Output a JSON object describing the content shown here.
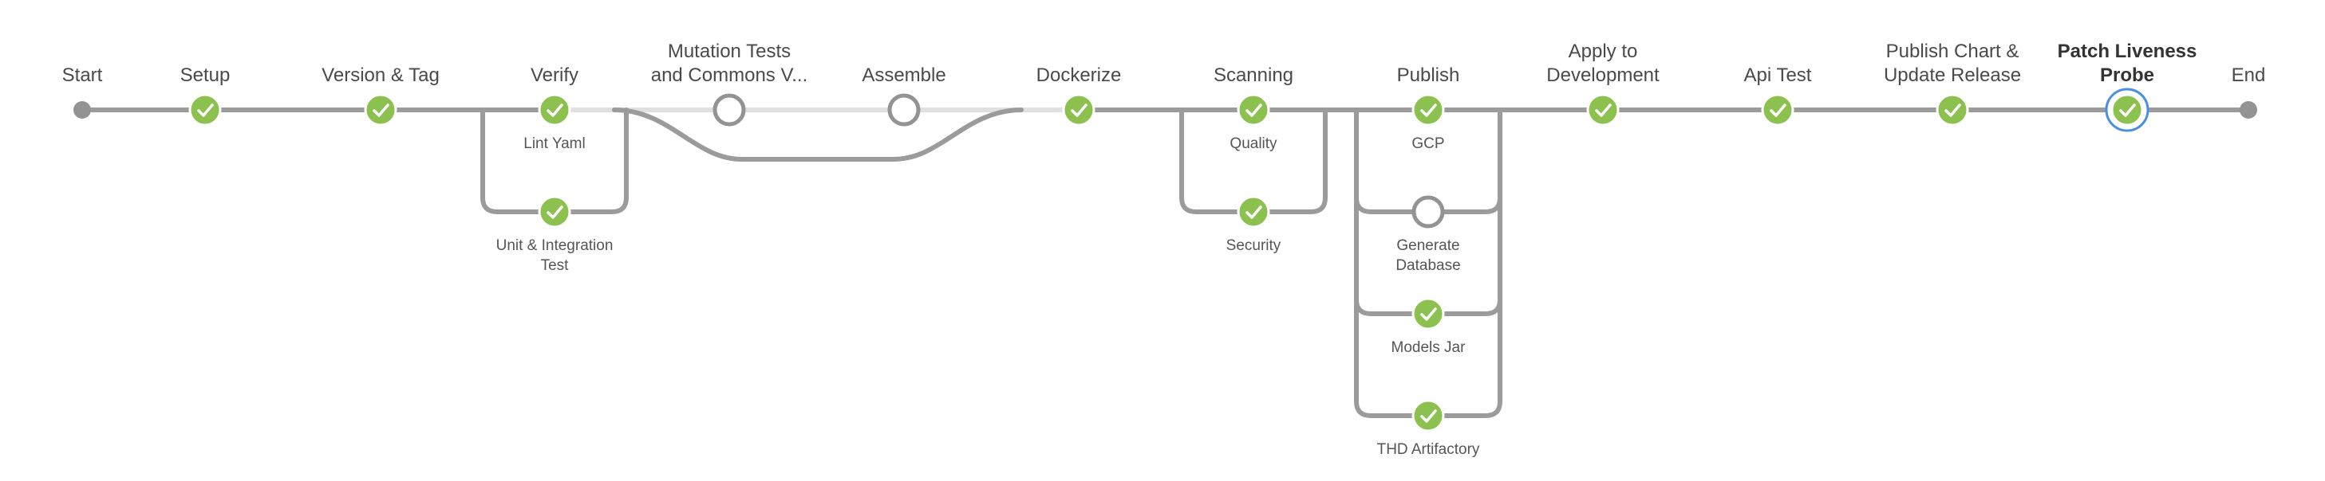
{
  "pipeline": {
    "start_label": "Start",
    "end_label": "End",
    "stages": [
      {
        "label_lines": [
          "Setup"
        ],
        "status": "success"
      },
      {
        "label_lines": [
          "Version & Tag"
        ],
        "status": "success"
      },
      {
        "label_lines": [
          "Verify"
        ],
        "status": "success",
        "branches": [
          {
            "label_lines": [
              "Lint Yaml"
            ],
            "status": "success"
          },
          {
            "label_lines": [
              "Unit & Integration",
              "Test"
            ],
            "status": "success"
          }
        ]
      },
      {
        "label_lines": [
          "Mutation Tests",
          "and Commons V..."
        ],
        "status": "not-built"
      },
      {
        "label_lines": [
          "Assemble"
        ],
        "status": "not-built"
      },
      {
        "label_lines": [
          "Dockerize"
        ],
        "status": "success"
      },
      {
        "label_lines": [
          "Scanning"
        ],
        "status": "success",
        "branches": [
          {
            "label_lines": [
              "Quality"
            ],
            "status": "success"
          },
          {
            "label_lines": [
              "Security"
            ],
            "status": "success"
          }
        ]
      },
      {
        "label_lines": [
          "Publish"
        ],
        "status": "success",
        "branches": [
          {
            "label_lines": [
              "GCP"
            ],
            "status": "success"
          },
          {
            "label_lines": [
              "Generate",
              "Database"
            ],
            "status": "not-built"
          },
          {
            "label_lines": [
              "Models Jar"
            ],
            "status": "success"
          },
          {
            "label_lines": [
              "THD Artifactory"
            ],
            "status": "success"
          }
        ]
      },
      {
        "label_lines": [
          "Apply to",
          "Development"
        ],
        "status": "success"
      },
      {
        "label_lines": [
          "Api Test"
        ],
        "status": "success"
      },
      {
        "label_lines": [
          "Publish Chart &",
          "Update Release"
        ],
        "status": "success"
      },
      {
        "label_lines": [
          "Patch Liveness",
          "Probe"
        ],
        "status": "success",
        "selected": true
      }
    ]
  },
  "colors": {
    "success": "#8cc04f",
    "edge": "#9b9b9b",
    "skipped_edge": "#e0e0e0",
    "not_built": "#949393",
    "selected_ring": "#4a90e2",
    "terminal": "#949393"
  }
}
